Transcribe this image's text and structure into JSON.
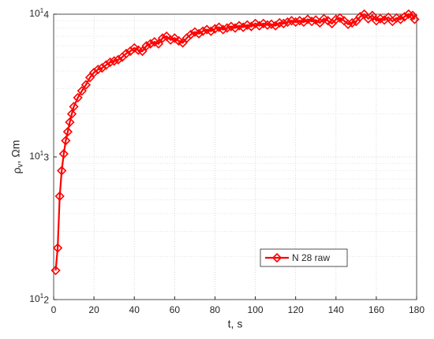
{
  "chart_data": {
    "type": "line",
    "xlabel": "t, s",
    "ylabel": "ρ_v, Ωm",
    "x": [
      1,
      2,
      3,
      4,
      5,
      6,
      7,
      8,
      9,
      10,
      12,
      14,
      16,
      18,
      20,
      22,
      24,
      26,
      28,
      30,
      32,
      34,
      36,
      38,
      40,
      42,
      44,
      46,
      48,
      50,
      52,
      54,
      56,
      58,
      60,
      62,
      64,
      66,
      68,
      70,
      72,
      74,
      76,
      78,
      80,
      82,
      84,
      86,
      88,
      90,
      92,
      94,
      96,
      98,
      100,
      102,
      104,
      106,
      108,
      110,
      112,
      114,
      116,
      118,
      120,
      122,
      124,
      126,
      128,
      130,
      132,
      134,
      136,
      138,
      140,
      142,
      144,
      146,
      148,
      150,
      152,
      154,
      156,
      158,
      160,
      162,
      164,
      166,
      168,
      170,
      172,
      174,
      176,
      178,
      179
    ],
    "series": [
      {
        "name": "N 28 raw",
        "color": "#ff0000",
        "values": [
          1600000000000.0,
          2300000000000.0,
          5300000000000.0,
          8000000000000.0,
          10500000000000.0,
          13000000000000.0,
          15000000000000.0,
          17500000000000.0,
          20000000000000.0,
          22500000000000.0,
          26000000000000.0,
          29000000000000.0,
          32000000000000.0,
          36000000000000.0,
          39000000000000.0,
          41000000000000.0,
          42000000000000.0,
          44000000000000.0,
          46000000000000.0,
          47000000000000.0,
          48000000000000.0,
          50000000000000.0,
          53000000000000.0,
          55000000000000.0,
          58000000000000.0,
          56000000000000.0,
          55000000000000.0,
          60000000000000.0,
          62000000000000.0,
          64000000000000.0,
          62000000000000.0,
          68000000000000.0,
          70000000000000.0,
          66000000000000.0,
          68000000000000.0,
          65000000000000.0,
          63000000000000.0,
          68000000000000.0,
          72000000000000.0,
          75000000000000.0,
          73000000000000.0,
          76000000000000.0,
          78000000000000.0,
          76000000000000.0,
          79000000000000.0,
          81000000000000.0,
          78000000000000.0,
          80000000000000.0,
          82000000000000.0,
          80000000000000.0,
          83000000000000.0,
          81000000000000.0,
          84000000000000.0,
          82000000000000.0,
          86000000000000.0,
          83000000000000.0,
          86000000000000.0,
          84000000000000.0,
          85000000000000.0,
          83000000000000.0,
          87000000000000.0,
          86000000000000.0,
          88000000000000.0,
          90000000000000.0,
          88000000000000.0,
          90000000000000.0,
          88000000000000.0,
          92000000000000.0,
          89000000000000.0,
          91000000000000.0,
          87000000000000.0,
          93000000000000.0,
          90000000000000.0,
          86000000000000.0,
          92000000000000.0,
          94000000000000.0,
          90000000000000.0,
          85000000000000.0,
          87000000000000.0,
          89000000000000.0,
          96000000000000.0,
          100000000000000.0,
          93000000000000.0,
          98000000000000.0,
          90000000000000.0,
          93000000000000.0,
          91000000000000.0,
          95000000000000.0,
          89000000000000.0,
          94000000000000.0,
          92000000000000.0,
          96000000000000.0,
          100000000000000.0,
          98000000000000.0,
          92000000000000.0
        ]
      }
    ],
    "xlim": [
      0,
      180
    ],
    "xticks": [
      0,
      20,
      40,
      60,
      80,
      100,
      120,
      140,
      160,
      180
    ],
    "ylim": [
      1000000000000.0,
      100000000000000.0
    ],
    "yscale": "log",
    "yticks": [
      {
        "value": 1000000000000.0,
        "label": "10^12"
      },
      {
        "value": 10000000000000.0,
        "label": "10^13"
      },
      {
        "value": 100000000000000.0,
        "label": "10^14"
      }
    ],
    "grid": true,
    "minor_grid": true,
    "legend": "lower right",
    "marker": "diamond"
  }
}
